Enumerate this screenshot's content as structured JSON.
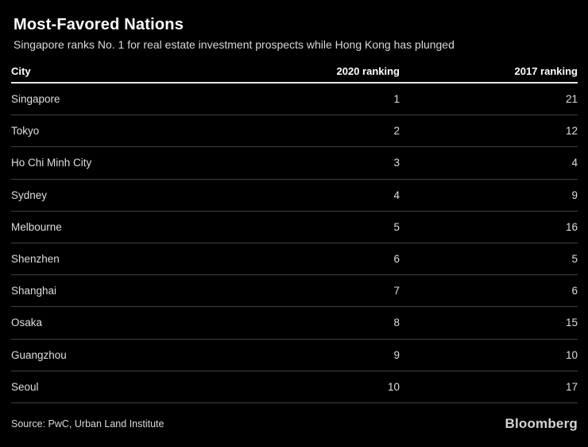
{
  "header": {
    "title": "Most-Favored Nations",
    "subtitle": "Singapore ranks No. 1 for real estate investment prospects while Hong Kong has plunged"
  },
  "chart_data": {
    "type": "table",
    "title": "Most-Favored Nations",
    "subtitle": "Singapore ranks No. 1 for real estate investment prospects while Hong Kong has plunged",
    "columns": [
      "City",
      "2020 ranking",
      "2017 ranking"
    ],
    "rows": [
      [
        "Singapore",
        1,
        21
      ],
      [
        "Tokyo",
        2,
        12
      ],
      [
        "Ho Chi Minh City",
        3,
        4
      ],
      [
        "Sydney",
        4,
        9
      ],
      [
        "Melbourne",
        5,
        16
      ],
      [
        "Shenzhen",
        6,
        5
      ],
      [
        "Shanghai",
        7,
        6
      ],
      [
        "Osaka",
        8,
        15
      ],
      [
        "Guangzhou",
        9,
        10
      ],
      [
        "Seoul",
        10,
        17
      ]
    ],
    "source": "Source: PwC, Urban Land Institute",
    "layout": {
      "grid": false,
      "legend": "none",
      "row_dividers": true
    }
  },
  "footer": {
    "source": "Source: PwC, Urban Land Institute",
    "brand": "Bloomberg"
  },
  "colors": {
    "background": "#000000",
    "title_text": "#ffffff",
    "body_text": "#dedede",
    "muted_text": "#d9d9d9",
    "header_rule": "#e6e6e6",
    "row_divider": "#404040"
  }
}
